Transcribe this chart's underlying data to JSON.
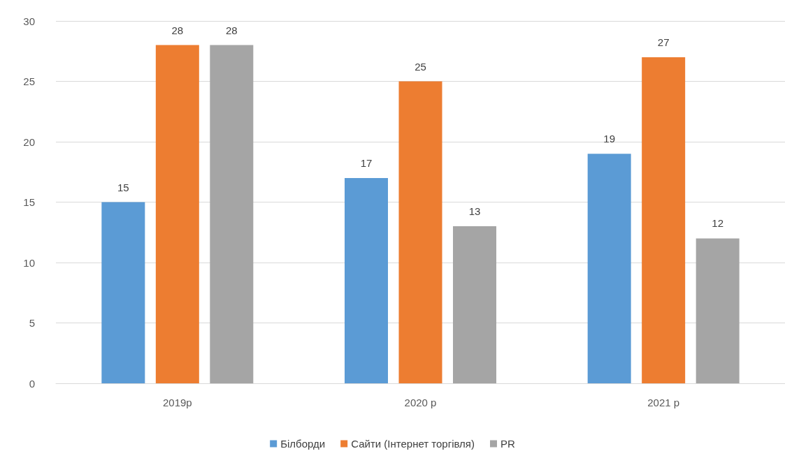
{
  "chart_data": {
    "type": "bar",
    "categories": [
      "2019р",
      "2020 р",
      "2021 р"
    ],
    "series": [
      {
        "name": "Білборди",
        "color": "#5b9bd5",
        "values": [
          15,
          17,
          19
        ]
      },
      {
        "name": "Сайти (Інтернет торгівля)",
        "color": "#ed7d31",
        "values": [
          28,
          25,
          27
        ]
      },
      {
        "name": "PR",
        "color": "#a5a5a5",
        "values": [
          28,
          13,
          12
        ]
      }
    ],
    "ylim": [
      0,
      30
    ],
    "yticks": [
      0,
      5,
      10,
      15,
      20,
      25,
      30
    ],
    "grid": "y",
    "legend": "bottom",
    "data_labels": true
  }
}
